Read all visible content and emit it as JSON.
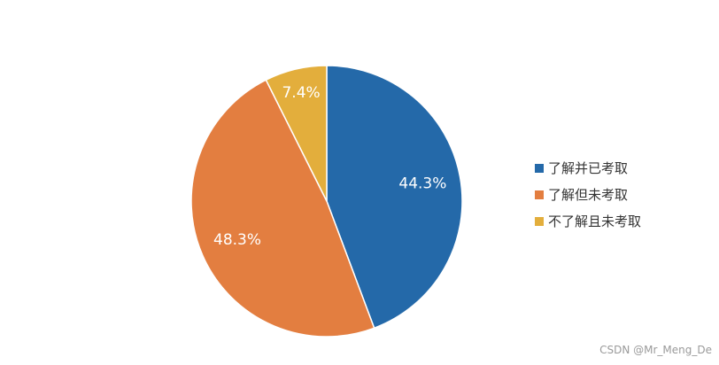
{
  "chart_data": {
    "type": "pie",
    "title": "",
    "categories": [
      "了解并已考取",
      "了解但未考取",
      "不了解且未考取"
    ],
    "values": [
      44.3,
      48.3,
      7.4
    ],
    "labels": [
      "44.3%",
      "48.3%",
      "7.4%"
    ],
    "colors": [
      "#2469a9",
      "#e37e40",
      "#e3ae3c"
    ],
    "start_angle": "12 o'clock",
    "direction": "clockwise",
    "legend_position": "right"
  },
  "watermark": "CSDN @Mr_Meng_De"
}
